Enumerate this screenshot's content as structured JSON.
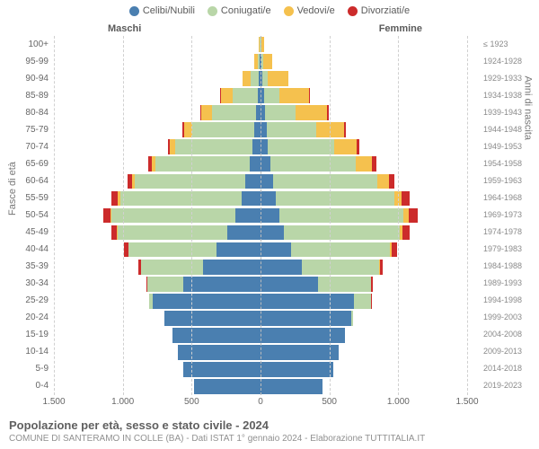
{
  "type": "population-pyramid",
  "legend": [
    {
      "label": "Celibi/Nubili",
      "color": "#4a7fb0"
    },
    {
      "label": "Coniugati/e",
      "color": "#b9d6a8"
    },
    {
      "label": "Vedovi/e",
      "color": "#f5c14e"
    },
    {
      "label": "Divorziati/e",
      "color": "#cc2b2b"
    }
  ],
  "gender_labels": {
    "male": "Maschi",
    "female": "Femmine"
  },
  "ylabel_left": "Fasce di età",
  "ylabel_right": "Anni di nascita",
  "age_groups": [
    "0-4",
    "5-9",
    "10-14",
    "15-19",
    "20-24",
    "25-29",
    "30-34",
    "35-39",
    "40-44",
    "45-49",
    "50-54",
    "55-59",
    "60-64",
    "65-69",
    "70-74",
    "75-79",
    "80-84",
    "85-89",
    "90-94",
    "95-99",
    "100+"
  ],
  "birth_years": [
    "2019-2023",
    "2014-2018",
    "2009-2013",
    "2004-2008",
    "1999-2003",
    "1994-1998",
    "1989-1993",
    "1984-1988",
    "1979-1983",
    "1974-1978",
    "1969-1973",
    "1964-1968",
    "1959-1963",
    "1954-1958",
    "1949-1953",
    "1944-1948",
    "1939-1943",
    "1934-1938",
    "1929-1933",
    "1924-1928",
    "≤ 1923"
  ],
  "xlim": 1500,
  "xticks": [
    {
      "pos": -1500,
      "label": "1.500"
    },
    {
      "pos": -1000,
      "label": "1.000"
    },
    {
      "pos": -500,
      "label": "500"
    },
    {
      "pos": 0,
      "label": "0"
    },
    {
      "pos": 500,
      "label": "500"
    },
    {
      "pos": 1000,
      "label": "1.000"
    },
    {
      "pos": 1500,
      "label": "1.500"
    }
  ],
  "grid_color": "#d0d0d0",
  "background_color": "#ffffff",
  "row_gap_ratio": 0.12,
  "segment_order": [
    "celibi",
    "coniugati",
    "vedovi",
    "divorziati"
  ],
  "segment_colors": {
    "celibi": "#4a7fb0",
    "coniugati": "#b9d6a8",
    "vedovi": "#f5c14e",
    "divorziati": "#cc2b2b"
  },
  "data": {
    "male": [
      {
        "celibi": 480,
        "coniugati": 0,
        "vedovi": 0,
        "divorziati": 0
      },
      {
        "celibi": 560,
        "coniugati": 0,
        "vedovi": 0,
        "divorziati": 0
      },
      {
        "celibi": 600,
        "coniugati": 0,
        "vedovi": 0,
        "divorziati": 0
      },
      {
        "celibi": 640,
        "coniugati": 0,
        "vedovi": 0,
        "divorziati": 0
      },
      {
        "celibi": 700,
        "coniugati": 0,
        "vedovi": 0,
        "divorziati": 0
      },
      {
        "celibi": 780,
        "coniugati": 30,
        "vedovi": 0,
        "divorziati": 0
      },
      {
        "celibi": 560,
        "coniugati": 260,
        "vedovi": 0,
        "divorziati": 10
      },
      {
        "celibi": 420,
        "coniugati": 450,
        "vedovi": 0,
        "divorziati": 20
      },
      {
        "celibi": 320,
        "coniugati": 640,
        "vedovi": 0,
        "divorziati": 30
      },
      {
        "celibi": 240,
        "coniugati": 800,
        "vedovi": 5,
        "divorziati": 40
      },
      {
        "celibi": 180,
        "coniugati": 900,
        "vedovi": 10,
        "divorziati": 50
      },
      {
        "celibi": 140,
        "coniugati": 880,
        "vedovi": 15,
        "divorziati": 45
      },
      {
        "celibi": 110,
        "coniugati": 800,
        "vedovi": 20,
        "divorziati": 35
      },
      {
        "celibi": 80,
        "coniugati": 680,
        "vedovi": 30,
        "divorziati": 25
      },
      {
        "celibi": 60,
        "coniugati": 560,
        "vedovi": 40,
        "divorziati": 15
      },
      {
        "celibi": 45,
        "coniugati": 450,
        "vedovi": 60,
        "divorziati": 10
      },
      {
        "celibi": 30,
        "coniugati": 320,
        "vedovi": 80,
        "divorziati": 5
      },
      {
        "celibi": 20,
        "coniugati": 180,
        "vedovi": 90,
        "divorziati": 3
      },
      {
        "celibi": 10,
        "coniugati": 60,
        "vedovi": 60,
        "divorziati": 0
      },
      {
        "celibi": 5,
        "coniugati": 15,
        "vedovi": 25,
        "divorziati": 0
      },
      {
        "celibi": 2,
        "coniugati": 3,
        "vedovi": 8,
        "divorziati": 0
      }
    ],
    "female": [
      {
        "celibi": 450,
        "coniugati": 0,
        "vedovi": 0,
        "divorziati": 0
      },
      {
        "celibi": 530,
        "coniugati": 0,
        "vedovi": 0,
        "divorziati": 0
      },
      {
        "celibi": 570,
        "coniugati": 0,
        "vedovi": 0,
        "divorziati": 0
      },
      {
        "celibi": 610,
        "coniugati": 0,
        "vedovi": 0,
        "divorziati": 0
      },
      {
        "celibi": 660,
        "coniugati": 10,
        "vedovi": 0,
        "divorziati": 0
      },
      {
        "celibi": 680,
        "coniugati": 120,
        "vedovi": 0,
        "divorziati": 5
      },
      {
        "celibi": 420,
        "coniugati": 380,
        "vedovi": 0,
        "divorziati": 15
      },
      {
        "celibi": 300,
        "coniugati": 560,
        "vedovi": 5,
        "divorziati": 25
      },
      {
        "celibi": 220,
        "coniugati": 720,
        "vedovi": 10,
        "divorziati": 40
      },
      {
        "celibi": 170,
        "coniugati": 840,
        "vedovi": 20,
        "divorziati": 55
      },
      {
        "celibi": 140,
        "coniugati": 900,
        "vedovi": 35,
        "divorziati": 65
      },
      {
        "celibi": 110,
        "coniugati": 860,
        "vedovi": 55,
        "divorziati": 55
      },
      {
        "celibi": 90,
        "coniugati": 760,
        "vedovi": 80,
        "divorziati": 40
      },
      {
        "celibi": 70,
        "coniugati": 620,
        "vedovi": 120,
        "divorziati": 30
      },
      {
        "celibi": 55,
        "coniugati": 480,
        "vedovi": 160,
        "divorziati": 20
      },
      {
        "celibi": 45,
        "coniugati": 360,
        "vedovi": 200,
        "divorziati": 12
      },
      {
        "celibi": 35,
        "coniugati": 220,
        "vedovi": 230,
        "divorziati": 8
      },
      {
        "celibi": 25,
        "coniugati": 110,
        "vedovi": 220,
        "divorziati": 4
      },
      {
        "celibi": 15,
        "coniugati": 40,
        "vedovi": 150,
        "divorziati": 0
      },
      {
        "celibi": 8,
        "coniugati": 10,
        "vedovi": 70,
        "divorziati": 0
      },
      {
        "celibi": 3,
        "coniugati": 2,
        "vedovi": 20,
        "divorziati": 0
      }
    ]
  },
  "footer": {
    "title": "Popolazione per età, sesso e stato civile - 2024",
    "subtitle": "COMUNE DI SANTERAMO IN COLLE (BA) - Dati ISTAT 1° gennaio 2024 - Elaborazione TUTTITALIA.IT"
  }
}
